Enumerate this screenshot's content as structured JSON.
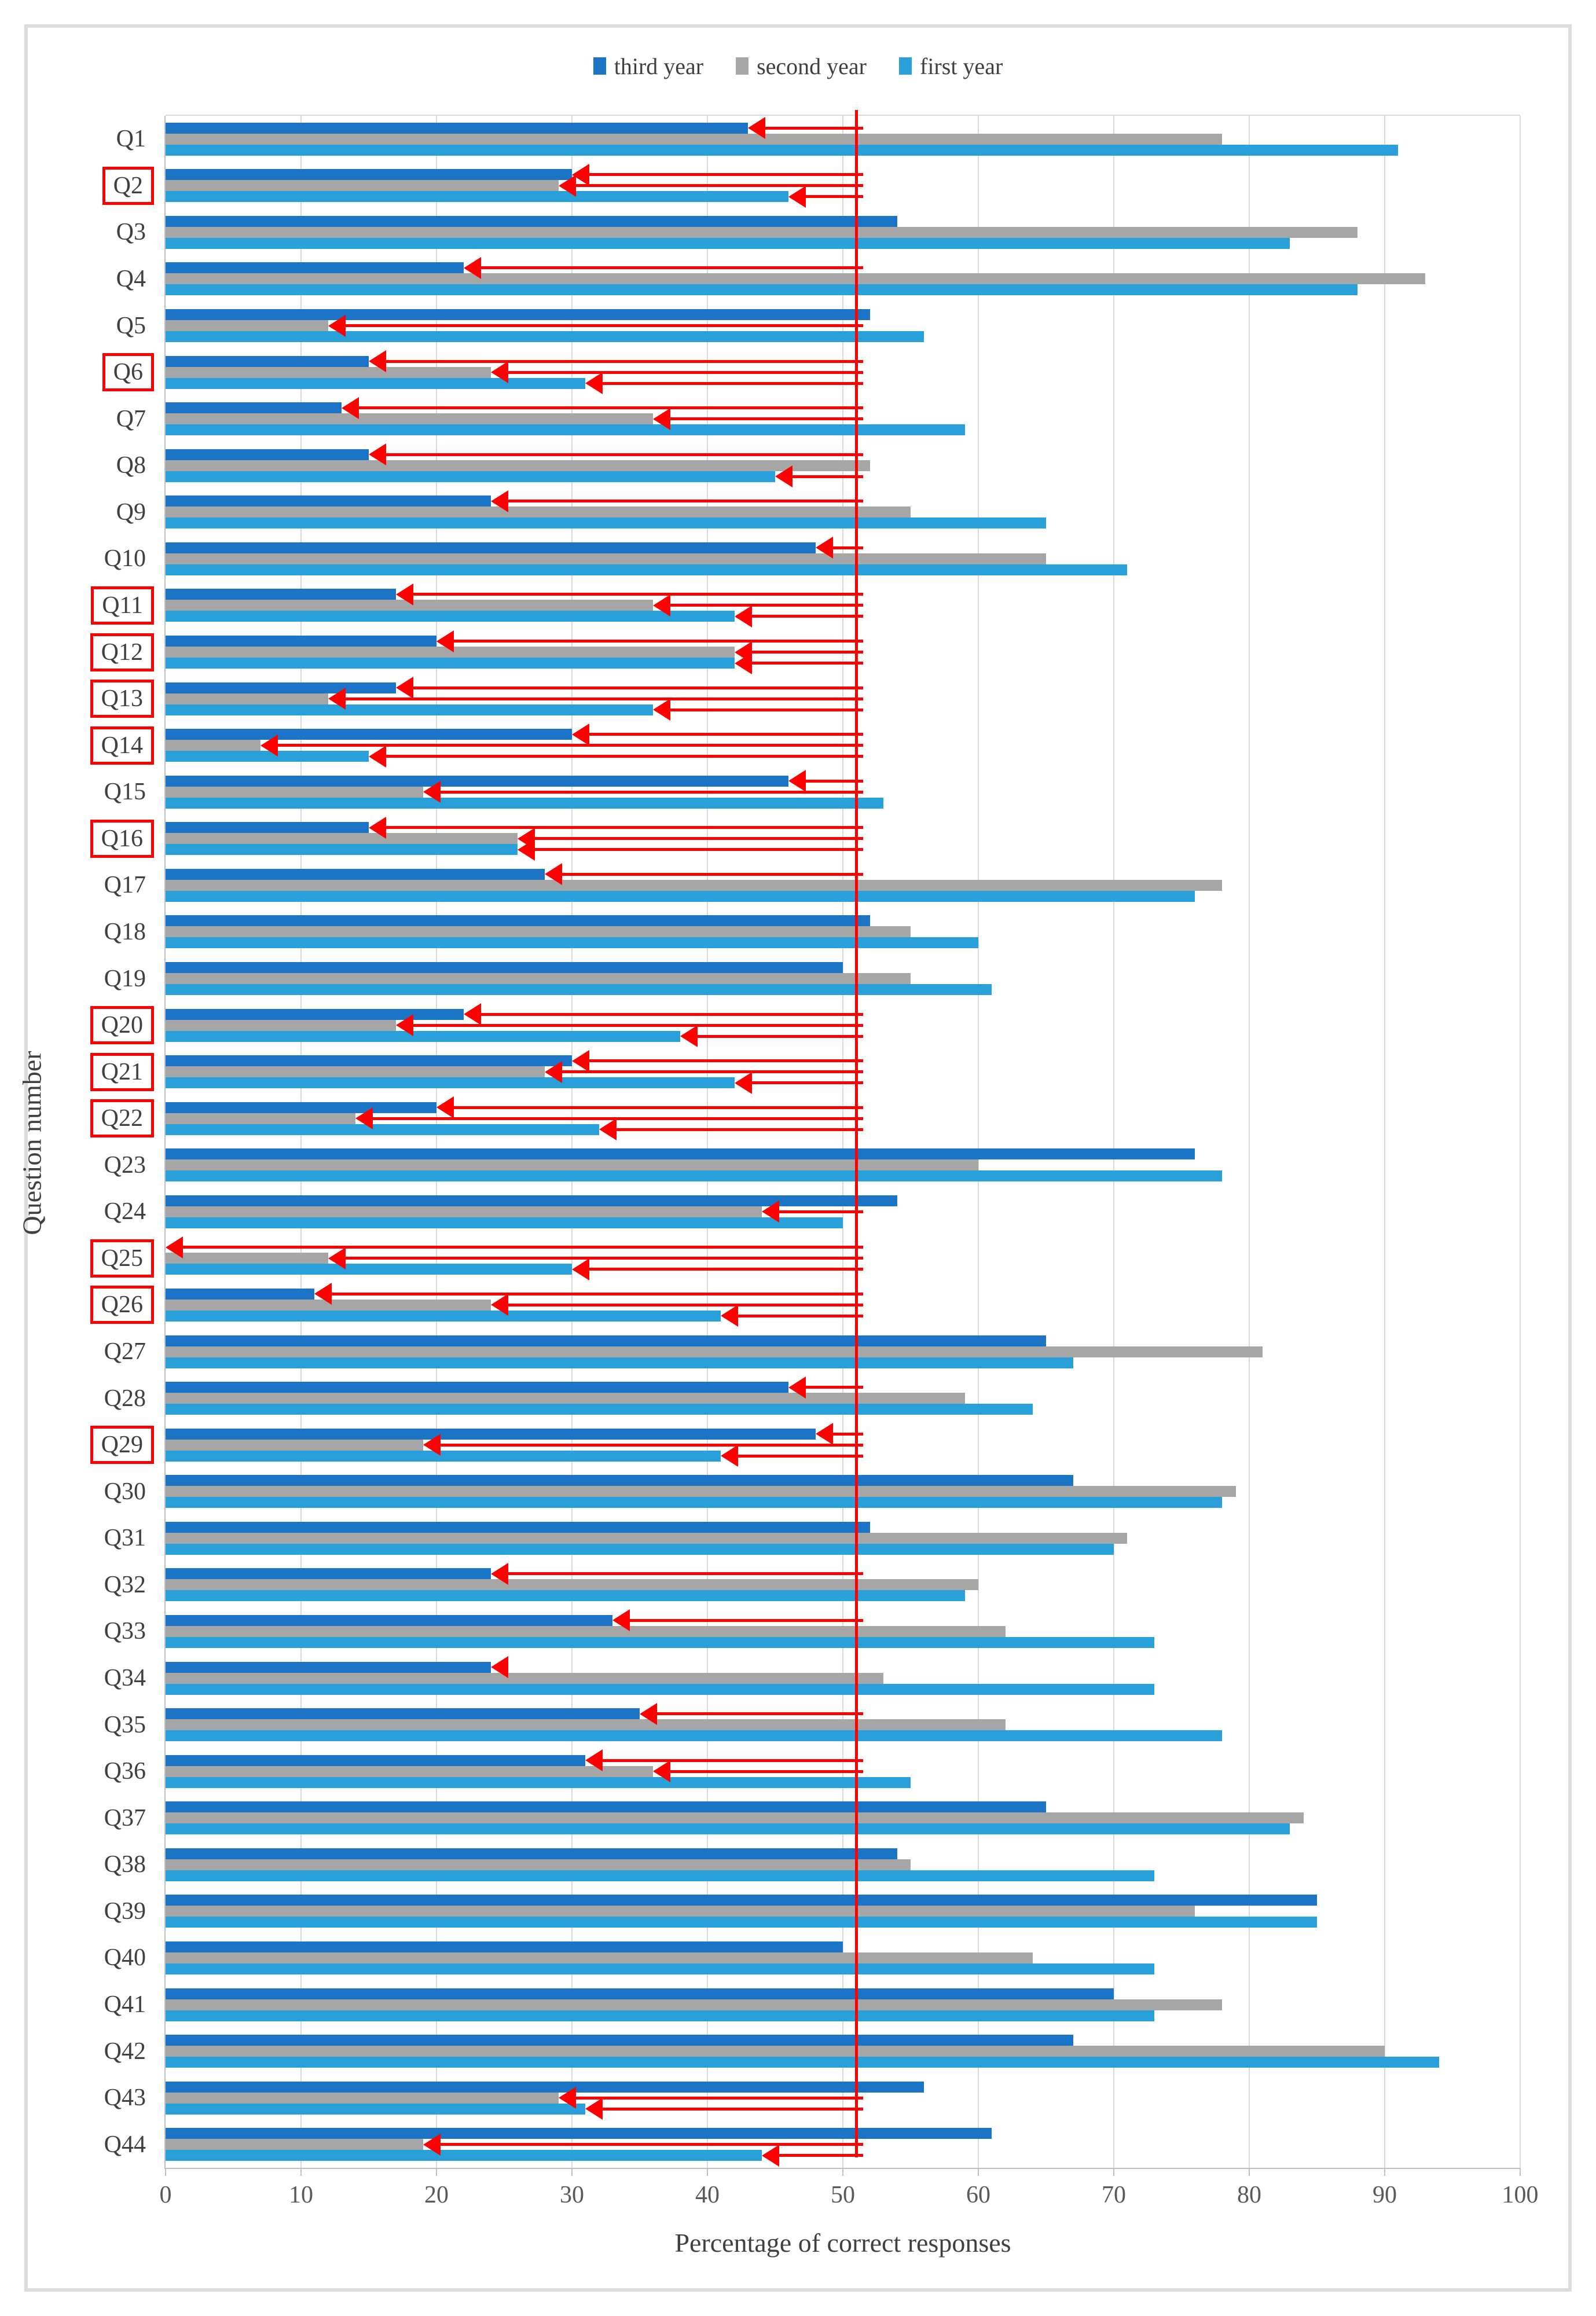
{
  "page": {
    "background": "#ffffff",
    "border_color": "#dcdcdc"
  },
  "legend": {
    "items": [
      {
        "label": "third year",
        "color": "#1b74c5"
      },
      {
        "label": "second year",
        "color": "#a6a6a6"
      },
      {
        "label": "first year",
        "color": "#29a0da"
      }
    ]
  },
  "axes": {
    "x_title": "Percentage of correct responses",
    "y_title": "Question number",
    "x_ticks": [
      "0",
      "10",
      "20",
      "30",
      "40",
      "50",
      "60",
      "70",
      "80",
      "90",
      "100"
    ],
    "x_min": 0,
    "x_max": 100
  },
  "threshold": {
    "value": 51,
    "color": "#fe0000"
  },
  "chart_data": {
    "type": "bar",
    "orientation": "horizontal",
    "title": "",
    "xlabel": "Percentage of correct responses",
    "ylabel": "Question number",
    "xlim": [
      0,
      100
    ],
    "grid": true,
    "legend_position": "top-center",
    "categories": [
      "Q1",
      "Q2",
      "Q3",
      "Q4",
      "Q5",
      "Q6",
      "Q7",
      "Q8",
      "Q9",
      "Q10",
      "Q11",
      "Q12",
      "Q13",
      "Q14",
      "Q15",
      "Q16",
      "Q17",
      "Q18",
      "Q19",
      "Q20",
      "Q21",
      "Q22",
      "Q23",
      "Q24",
      "Q25",
      "Q26",
      "Q27",
      "Q28",
      "Q29",
      "Q30",
      "Q31",
      "Q32",
      "Q33",
      "Q34",
      "Q35",
      "Q36",
      "Q37",
      "Q38",
      "Q39",
      "Q40",
      "Q41",
      "Q42",
      "Q43",
      "Q44"
    ],
    "boxed_categories": [
      "Q2",
      "Q6",
      "Q11",
      "Q12",
      "Q13",
      "Q14",
      "Q16",
      "Q20",
      "Q21",
      "Q22",
      "Q25",
      "Q26",
      "Q29"
    ],
    "series": [
      {
        "name": "third year",
        "color": "#1b74c5",
        "values": [
          43,
          30,
          54,
          22,
          52,
          15,
          13,
          15,
          24,
          48,
          17,
          20,
          17,
          30,
          46,
          15,
          28,
          52,
          50,
          22,
          30,
          20,
          76,
          54,
          0,
          11,
          65,
          46,
          48,
          67,
          52,
          24,
          33,
          24,
          35,
          31,
          65,
          54,
          85,
          50,
          70,
          67,
          56,
          61
        ]
      },
      {
        "name": "second year",
        "color": "#a6a6a6",
        "values": [
          78,
          29,
          88,
          93,
          12,
          24,
          36,
          52,
          55,
          65,
          36,
          42,
          12,
          7,
          19,
          26,
          78,
          55,
          55,
          17,
          28,
          14,
          60,
          44,
          12,
          24,
          81,
          59,
          19,
          79,
          71,
          60,
          62,
          53,
          62,
          36,
          84,
          55,
          76,
          64,
          78,
          90,
          29,
          19
        ]
      },
      {
        "name": "first year",
        "color": "#29a0da",
        "values": [
          91,
          46,
          83,
          88,
          56,
          31,
          59,
          45,
          65,
          71,
          42,
          42,
          36,
          15,
          53,
          26,
          76,
          60,
          61,
          38,
          42,
          32,
          78,
          50,
          30,
          41,
          67,
          64,
          41,
          78,
          70,
          59,
          73,
          73,
          78,
          55,
          83,
          73,
          85,
          73,
          73,
          94,
          31,
          44
        ]
      }
    ],
    "arrows": [
      {
        "category": "Q1",
        "series": "third year",
        "tail": true
      },
      {
        "category": "Q2",
        "series": "third year",
        "tail": true
      },
      {
        "category": "Q2",
        "series": "second year",
        "tail": true
      },
      {
        "category": "Q2",
        "series": "first year",
        "tail": true
      },
      {
        "category": "Q4",
        "series": "third year",
        "tail": true
      },
      {
        "category": "Q5",
        "series": "second year",
        "tail": true
      },
      {
        "category": "Q6",
        "series": "third year",
        "tail": true
      },
      {
        "category": "Q6",
        "series": "second year",
        "tail": true
      },
      {
        "category": "Q6",
        "series": "first year",
        "tail": true
      },
      {
        "category": "Q7",
        "series": "third year",
        "tail": true
      },
      {
        "category": "Q7",
        "series": "second year",
        "tail": true
      },
      {
        "category": "Q8",
        "series": "third year",
        "tail": true
      },
      {
        "category": "Q8",
        "series": "first year",
        "tail": true
      },
      {
        "category": "Q9",
        "series": "third year",
        "tail": true
      },
      {
        "category": "Q10",
        "series": "third year",
        "tail": true
      },
      {
        "category": "Q11",
        "series": "third year",
        "tail": true
      },
      {
        "category": "Q11",
        "series": "second year",
        "tail": true
      },
      {
        "category": "Q11",
        "series": "first year",
        "tail": true
      },
      {
        "category": "Q12",
        "series": "third year",
        "tail": true
      },
      {
        "category": "Q12",
        "series": "second year",
        "tail": true
      },
      {
        "category": "Q12",
        "series": "first year",
        "tail": true
      },
      {
        "category": "Q13",
        "series": "third year",
        "tail": true
      },
      {
        "category": "Q13",
        "series": "second year",
        "tail": true
      },
      {
        "category": "Q13",
        "series": "first year",
        "tail": true
      },
      {
        "category": "Q14",
        "series": "third year",
        "tail": true
      },
      {
        "category": "Q14",
        "series": "second year",
        "tail": true
      },
      {
        "category": "Q14",
        "series": "first year",
        "tail": true
      },
      {
        "category": "Q15",
        "series": "third year",
        "tail": true
      },
      {
        "category": "Q15",
        "series": "second year",
        "tail": true
      },
      {
        "category": "Q16",
        "series": "third year",
        "tail": true
      },
      {
        "category": "Q16",
        "series": "second year",
        "tail": true
      },
      {
        "category": "Q16",
        "series": "first year",
        "tail": true
      },
      {
        "category": "Q17",
        "series": "third year",
        "tail": true
      },
      {
        "category": "Q20",
        "series": "third year",
        "tail": true
      },
      {
        "category": "Q20",
        "series": "second year",
        "tail": true
      },
      {
        "category": "Q20",
        "series": "first year",
        "tail": true
      },
      {
        "category": "Q21",
        "series": "third year",
        "tail": true
      },
      {
        "category": "Q21",
        "series": "second year",
        "tail": true
      },
      {
        "category": "Q21",
        "series": "first year",
        "tail": true
      },
      {
        "category": "Q22",
        "series": "third year",
        "tail": true
      },
      {
        "category": "Q22",
        "series": "second year",
        "tail": true
      },
      {
        "category": "Q22",
        "series": "first year",
        "tail": true
      },
      {
        "category": "Q24",
        "series": "second year",
        "tail": true
      },
      {
        "category": "Q25",
        "series": "third year",
        "tail": true
      },
      {
        "category": "Q25",
        "series": "second year",
        "tail": true
      },
      {
        "category": "Q25",
        "series": "first year",
        "tail": true
      },
      {
        "category": "Q26",
        "series": "third year",
        "tail": true
      },
      {
        "category": "Q26",
        "series": "second year",
        "tail": true
      },
      {
        "category": "Q26",
        "series": "first year",
        "tail": true
      },
      {
        "category": "Q28",
        "series": "third year",
        "tail": true
      },
      {
        "category": "Q29",
        "series": "third year",
        "tail": true
      },
      {
        "category": "Q29",
        "series": "second year",
        "tail": true
      },
      {
        "category": "Q29",
        "series": "first year",
        "tail": true
      },
      {
        "category": "Q32",
        "series": "third year",
        "tail": true
      },
      {
        "category": "Q33",
        "series": "third year",
        "tail": true
      },
      {
        "category": "Q34",
        "series": "third year",
        "tail": false
      },
      {
        "category": "Q35",
        "series": "third year",
        "tail": true
      },
      {
        "category": "Q36",
        "series": "third year",
        "tail": true
      },
      {
        "category": "Q36",
        "series": "second year",
        "tail": true
      },
      {
        "category": "Q43",
        "series": "second year",
        "tail": true
      },
      {
        "category": "Q43",
        "series": "first year",
        "tail": true
      },
      {
        "category": "Q44",
        "series": "second year",
        "tail": true
      },
      {
        "category": "Q44",
        "series": "first year",
        "tail": true
      }
    ]
  }
}
